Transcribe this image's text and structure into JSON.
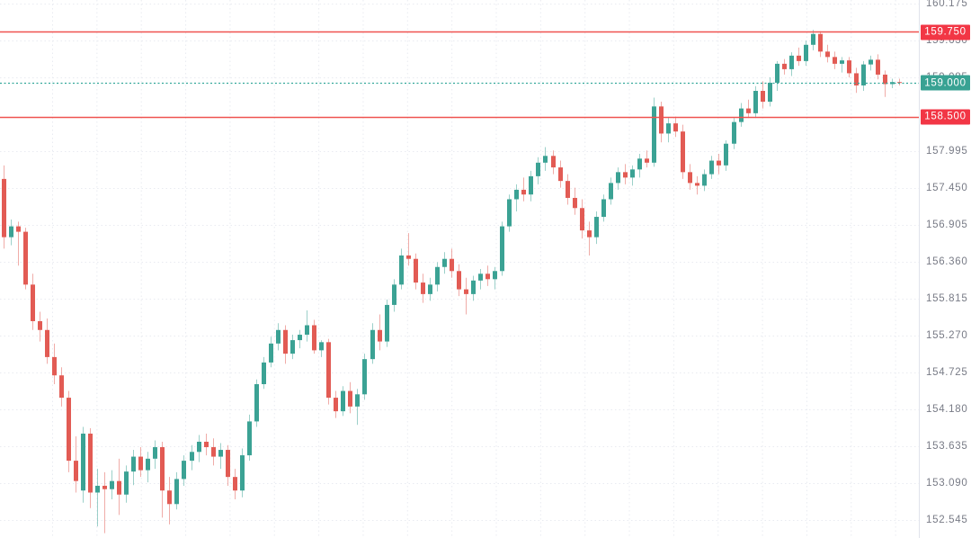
{
  "chart_data": {
    "type": "candlestick",
    "background": "#ffffff",
    "y_axis": {
      "side": "right",
      "ticks": [
        "160.175",
        "159.630",
        "159.085",
        "157.995",
        "157.450",
        "156.905",
        "156.360",
        "155.815",
        "155.270",
        "154.725",
        "154.180",
        "153.635",
        "153.090",
        "152.545"
      ],
      "range": {
        "top": 160.2215,
        "bottom": 152.279
      },
      "tick_text_color": "#787b86",
      "axis_border_color": "#e0e3eb"
    },
    "levels": [
      {
        "label": "159.750",
        "price": 159.75,
        "style": "solid",
        "line_color": "#ef5350",
        "badge_color": "#f23645",
        "role": "resistance-level"
      },
      {
        "label": "159.000",
        "price": 159.0,
        "style": "dashed",
        "line_color": "#33a79a",
        "badge_color": "#38a293",
        "role": "current-price"
      },
      {
        "label": "158.500",
        "price": 158.5,
        "style": "solid",
        "line_color": "#ef5350",
        "badge_color": "#f23645",
        "role": "support-level"
      }
    ],
    "current_price": "159.000",
    "colors": {
      "up_candle": "#3ba294",
      "down_candle": "#e25b54",
      "grid": "#e9ebf1"
    },
    "candles": [
      [
        157.58,
        157.78,
        156.55,
        156.72
      ],
      [
        156.72,
        156.98,
        156.6,
        156.88
      ],
      [
        156.88,
        156.95,
        156.3,
        156.8
      ],
      [
        156.8,
        156.86,
        155.95,
        156.02
      ],
      [
        156.02,
        156.18,
        155.35,
        155.48
      ],
      [
        155.48,
        155.62,
        155.18,
        155.35
      ],
      [
        155.35,
        155.52,
        154.85,
        154.95
      ],
      [
        154.95,
        155.15,
        154.55,
        154.68
      ],
      [
        154.68,
        154.8,
        154.22,
        154.35
      ],
      [
        154.35,
        154.45,
        153.25,
        153.42
      ],
      [
        153.42,
        153.78,
        152.95,
        153.12
      ],
      [
        152.98,
        153.92,
        152.8,
        153.82
      ],
      [
        153.82,
        153.9,
        152.72,
        152.95
      ],
      [
        152.95,
        153.3,
        152.45,
        153.05
      ],
      [
        153.05,
        153.25,
        152.35,
        153.0
      ],
      [
        153.0,
        153.28,
        152.85,
        153.12
      ],
      [
        153.12,
        153.45,
        152.62,
        152.92
      ],
      [
        152.92,
        153.35,
        152.8,
        153.26
      ],
      [
        153.26,
        153.58,
        153.06,
        153.48
      ],
      [
        153.48,
        153.62,
        153.18,
        153.28
      ],
      [
        153.28,
        153.55,
        153.1,
        153.45
      ],
      [
        153.45,
        153.72,
        153.3,
        153.62
      ],
      [
        153.62,
        153.7,
        152.58,
        152.98
      ],
      [
        152.98,
        153.18,
        152.48,
        152.78
      ],
      [
        152.78,
        153.25,
        152.7,
        153.15
      ],
      [
        153.15,
        153.5,
        153.05,
        153.42
      ],
      [
        153.42,
        153.65,
        153.28,
        153.55
      ],
      [
        153.55,
        153.8,
        153.4,
        153.7
      ],
      [
        153.7,
        153.82,
        153.5,
        153.62
      ],
      [
        153.62,
        153.75,
        153.35,
        153.48
      ],
      [
        153.48,
        153.68,
        153.3,
        153.58
      ],
      [
        153.58,
        153.65,
        153.05,
        153.18
      ],
      [
        153.18,
        153.3,
        152.85,
        152.98
      ],
      [
        152.98,
        153.6,
        152.88,
        153.5
      ],
      [
        153.5,
        154.1,
        153.42,
        154.0
      ],
      [
        154.0,
        154.62,
        153.92,
        154.55
      ],
      [
        154.55,
        154.95,
        154.48,
        154.87
      ],
      [
        154.87,
        155.25,
        154.8,
        155.15
      ],
      [
        155.15,
        155.45,
        155.05,
        155.35
      ],
      [
        155.35,
        155.42,
        154.85,
        155.0
      ],
      [
        155.0,
        155.28,
        154.92,
        155.2
      ],
      [
        155.2,
        155.35,
        155.08,
        155.28
      ],
      [
        155.28,
        155.64,
        155.18,
        155.42
      ],
      [
        155.42,
        155.5,
        155.0,
        155.05
      ],
      [
        155.05,
        155.2,
        154.95,
        155.17
      ],
      [
        155.17,
        155.22,
        154.25,
        154.35
      ],
      [
        154.35,
        154.45,
        154.05,
        154.15
      ],
      [
        154.15,
        154.52,
        154.08,
        154.45
      ],
      [
        154.45,
        154.58,
        154.12,
        154.22
      ],
      [
        154.22,
        154.48,
        153.95,
        154.4
      ],
      [
        154.4,
        155.0,
        154.32,
        154.92
      ],
      [
        154.92,
        155.45,
        154.85,
        155.35
      ],
      [
        155.35,
        155.58,
        155.05,
        155.18
      ],
      [
        155.18,
        155.8,
        155.1,
        155.72
      ],
      [
        155.72,
        156.1,
        155.62,
        156.02
      ],
      [
        156.02,
        156.55,
        155.95,
        156.45
      ],
      [
        156.45,
        156.78,
        156.3,
        156.4
      ],
      [
        156.4,
        156.48,
        155.95,
        156.05
      ],
      [
        156.05,
        156.18,
        155.75,
        155.88
      ],
      [
        155.88,
        156.12,
        155.78,
        156.02
      ],
      [
        156.02,
        156.35,
        155.92,
        156.28
      ],
      [
        156.28,
        156.5,
        156.18,
        156.4
      ],
      [
        156.4,
        156.55,
        156.12,
        156.22
      ],
      [
        156.22,
        156.32,
        155.85,
        155.95
      ],
      [
        155.95,
        156.12,
        155.58,
        155.88
      ],
      [
        155.88,
        156.15,
        155.78,
        156.08
      ],
      [
        156.08,
        156.25,
        155.95,
        156.18
      ],
      [
        156.18,
        156.3,
        156.0,
        156.1
      ],
      [
        156.1,
        156.28,
        155.95,
        156.22
      ],
      [
        156.22,
        156.95,
        156.15,
        156.88
      ],
      [
        156.88,
        157.35,
        156.8,
        157.28
      ],
      [
        157.28,
        157.5,
        157.1,
        157.42
      ],
      [
        157.42,
        157.6,
        157.25,
        157.35
      ],
      [
        157.35,
        157.7,
        157.25,
        157.62
      ],
      [
        157.62,
        157.9,
        157.5,
        157.82
      ],
      [
        157.82,
        158.05,
        157.7,
        157.92
      ],
      [
        157.92,
        158.0,
        157.65,
        157.75
      ],
      [
        157.75,
        157.85,
        157.45,
        157.55
      ],
      [
        157.55,
        157.65,
        157.2,
        157.3
      ],
      [
        157.3,
        157.45,
        157.05,
        157.15
      ],
      [
        157.15,
        157.28,
        156.7,
        156.82
      ],
      [
        156.82,
        156.95,
        156.45,
        156.72
      ],
      [
        156.72,
        157.1,
        156.62,
        157.02
      ],
      [
        157.02,
        157.35,
        156.95,
        157.28
      ],
      [
        157.28,
        157.6,
        157.2,
        157.52
      ],
      [
        157.52,
        157.75,
        157.42,
        157.68
      ],
      [
        157.68,
        157.8,
        157.5,
        157.6
      ],
      [
        157.6,
        157.78,
        157.48,
        157.72
      ],
      [
        157.72,
        157.95,
        157.6,
        157.88
      ],
      [
        157.88,
        158.0,
        157.75,
        157.82
      ],
      [
        157.82,
        158.78,
        157.76,
        158.65
      ],
      [
        158.65,
        158.72,
        158.12,
        158.25
      ],
      [
        158.25,
        158.48,
        158.12,
        158.4
      ],
      [
        158.4,
        158.5,
        158.2,
        158.28
      ],
      [
        158.28,
        158.38,
        157.58,
        157.68
      ],
      [
        157.68,
        157.8,
        157.42,
        157.52
      ],
      [
        157.52,
        157.62,
        157.35,
        157.48
      ],
      [
        157.48,
        157.72,
        157.4,
        157.65
      ],
      [
        157.65,
        157.92,
        157.58,
        157.85
      ],
      [
        157.85,
        157.95,
        157.65,
        157.78
      ],
      [
        157.78,
        158.15,
        157.7,
        158.1
      ],
      [
        158.1,
        158.48,
        158.02,
        158.42
      ],
      [
        158.42,
        158.7,
        158.35,
        158.62
      ],
      [
        158.62,
        158.75,
        158.48,
        158.55
      ],
      [
        158.55,
        158.95,
        158.48,
        158.88
      ],
      [
        158.88,
        159.02,
        158.62,
        158.72
      ],
      [
        158.72,
        159.08,
        158.65,
        159.0
      ],
      [
        159.0,
        159.32,
        158.88,
        159.28
      ],
      [
        159.28,
        159.35,
        159.12,
        159.2
      ],
      [
        159.2,
        159.45,
        159.1,
        159.4
      ],
      [
        159.4,
        159.52,
        159.25,
        159.32
      ],
      [
        159.32,
        159.62,
        159.25,
        159.56
      ],
      [
        159.56,
        159.78,
        159.48,
        159.72
      ],
      [
        159.72,
        159.76,
        159.38,
        159.46
      ],
      [
        159.46,
        159.56,
        159.3,
        159.38
      ],
      [
        159.38,
        159.46,
        159.2,
        159.28
      ],
      [
        159.28,
        159.38,
        159.15,
        159.33
      ],
      [
        159.33,
        159.38,
        159.08,
        159.14
      ],
      [
        159.14,
        159.22,
        158.85,
        158.96
      ],
      [
        158.96,
        159.32,
        158.88,
        159.27
      ],
      [
        159.27,
        159.4,
        159.18,
        159.34
      ],
      [
        159.34,
        159.42,
        159.05,
        159.12
      ],
      [
        159.12,
        159.18,
        158.79,
        158.98
      ],
      [
        158.98,
        159.06,
        158.92,
        159.01
      ],
      [
        159.01,
        159.06,
        158.96,
        159.0
      ]
    ]
  }
}
